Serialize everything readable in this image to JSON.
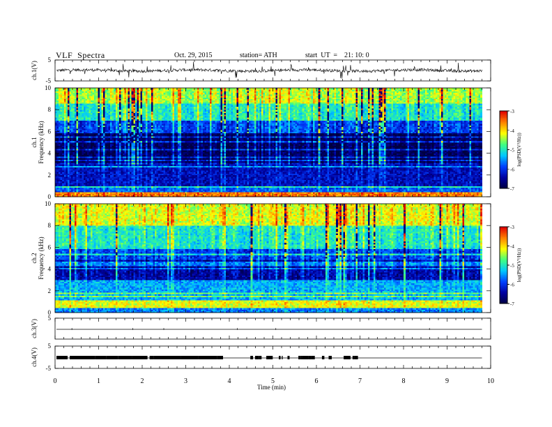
{
  "header": {
    "title": "VLF  Spectra",
    "date": "Oct. 29, 2015",
    "station": "station= ATH",
    "start": "start  UT  =    21: 10: 0"
  },
  "chart_data": [
    {
      "type": "line",
      "name": "ch1-waveform",
      "ylabel": "ch.1(V)",
      "ylim": [
        -5,
        5
      ],
      "yticks": [
        "5",
        "-5"
      ],
      "xlim": [
        0,
        10
      ],
      "baseline": 0
    },
    {
      "type": "heatmap",
      "name": "ch1-spectrogram",
      "ylabel_top": "ch.1",
      "ylabel": "Frequency  (kHz)",
      "ylim": [
        0,
        10
      ],
      "yticks": [
        "0",
        "2",
        "4",
        "6",
        "8",
        "10"
      ],
      "xlim": [
        0,
        10
      ],
      "data_end_min": 9.8,
      "bands_khz": [
        {
          "from": 0.0,
          "to": 0.5,
          "level": -3.6
        },
        {
          "from": 0.5,
          "to": 1.0,
          "level": -5.8
        },
        {
          "from": 1.0,
          "to": 3.2,
          "level": -6.3
        },
        {
          "from": 3.2,
          "to": 5.8,
          "level": -6.85
        },
        {
          "from": 5.8,
          "to": 7.0,
          "level": -5.9
        },
        {
          "from": 7.0,
          "to": 8.6,
          "level": -5.0
        },
        {
          "from": 8.6,
          "to": 10.0,
          "level": -4.4
        }
      ],
      "colorbar": {
        "label": "log(PSD(V²/Hz))",
        "min": -7,
        "max": -3,
        "ticks": [
          "-3",
          "-4",
          "-5",
          "-6",
          "-7"
        ]
      }
    },
    {
      "type": "heatmap",
      "name": "ch2-spectrogram",
      "ylabel_top": "ch.2",
      "ylabel": "Frequency  (kHz)",
      "ylim": [
        0,
        10
      ],
      "yticks": [
        "0",
        "2",
        "4",
        "6",
        "8",
        "10"
      ],
      "xlim": [
        0,
        10
      ],
      "data_end_min": 9.8,
      "bands_khz": [
        {
          "from": 0.0,
          "to": 0.4,
          "level": -5.6
        },
        {
          "from": 0.4,
          "to": 1.1,
          "level": -4.2
        },
        {
          "from": 1.1,
          "to": 3.0,
          "level": -5.4
        },
        {
          "from": 3.0,
          "to": 4.8,
          "level": -6.4
        },
        {
          "from": 4.8,
          "to": 6.0,
          "level": -5.9
        },
        {
          "from": 6.0,
          "to": 8.0,
          "level": -5.0
        },
        {
          "from": 8.0,
          "to": 10.0,
          "level": -4.2
        }
      ],
      "colorbar": {
        "label": "log(PSD(V²/Hz))",
        "min": -7,
        "max": -3,
        "ticks": [
          "-3",
          "-4",
          "-5",
          "-6",
          "-7"
        ]
      }
    },
    {
      "type": "line",
      "name": "ch3-waveform",
      "ylabel": "ch.3(V)",
      "ylim": [
        -5,
        5
      ],
      "yticks": [
        "5"
      ],
      "xlim": [
        0,
        10
      ],
      "baseline": 0
    },
    {
      "type": "line",
      "name": "ch4-waveform",
      "ylabel": "ch.4(V)",
      "ylim": [
        -5,
        5
      ],
      "yticks": [
        "5",
        "-5"
      ],
      "xlim": [
        0,
        10
      ],
      "baseline": 0,
      "pulse_region_min": [
        0,
        6.9
      ]
    }
  ],
  "xaxis": {
    "label": "Time  (min)",
    "ticks": [
      "0",
      "1",
      "2",
      "3",
      "4",
      "5",
      "6",
      "7",
      "8",
      "9",
      "10"
    ],
    "range": [
      0,
      10
    ]
  },
  "colors": {
    "colormap": [
      "#000040",
      "#0000a0",
      "#0040ff",
      "#00c8ff",
      "#40ff80",
      "#ffff00",
      "#ff8000",
      "#e00000",
      "#ffffff"
    ]
  }
}
